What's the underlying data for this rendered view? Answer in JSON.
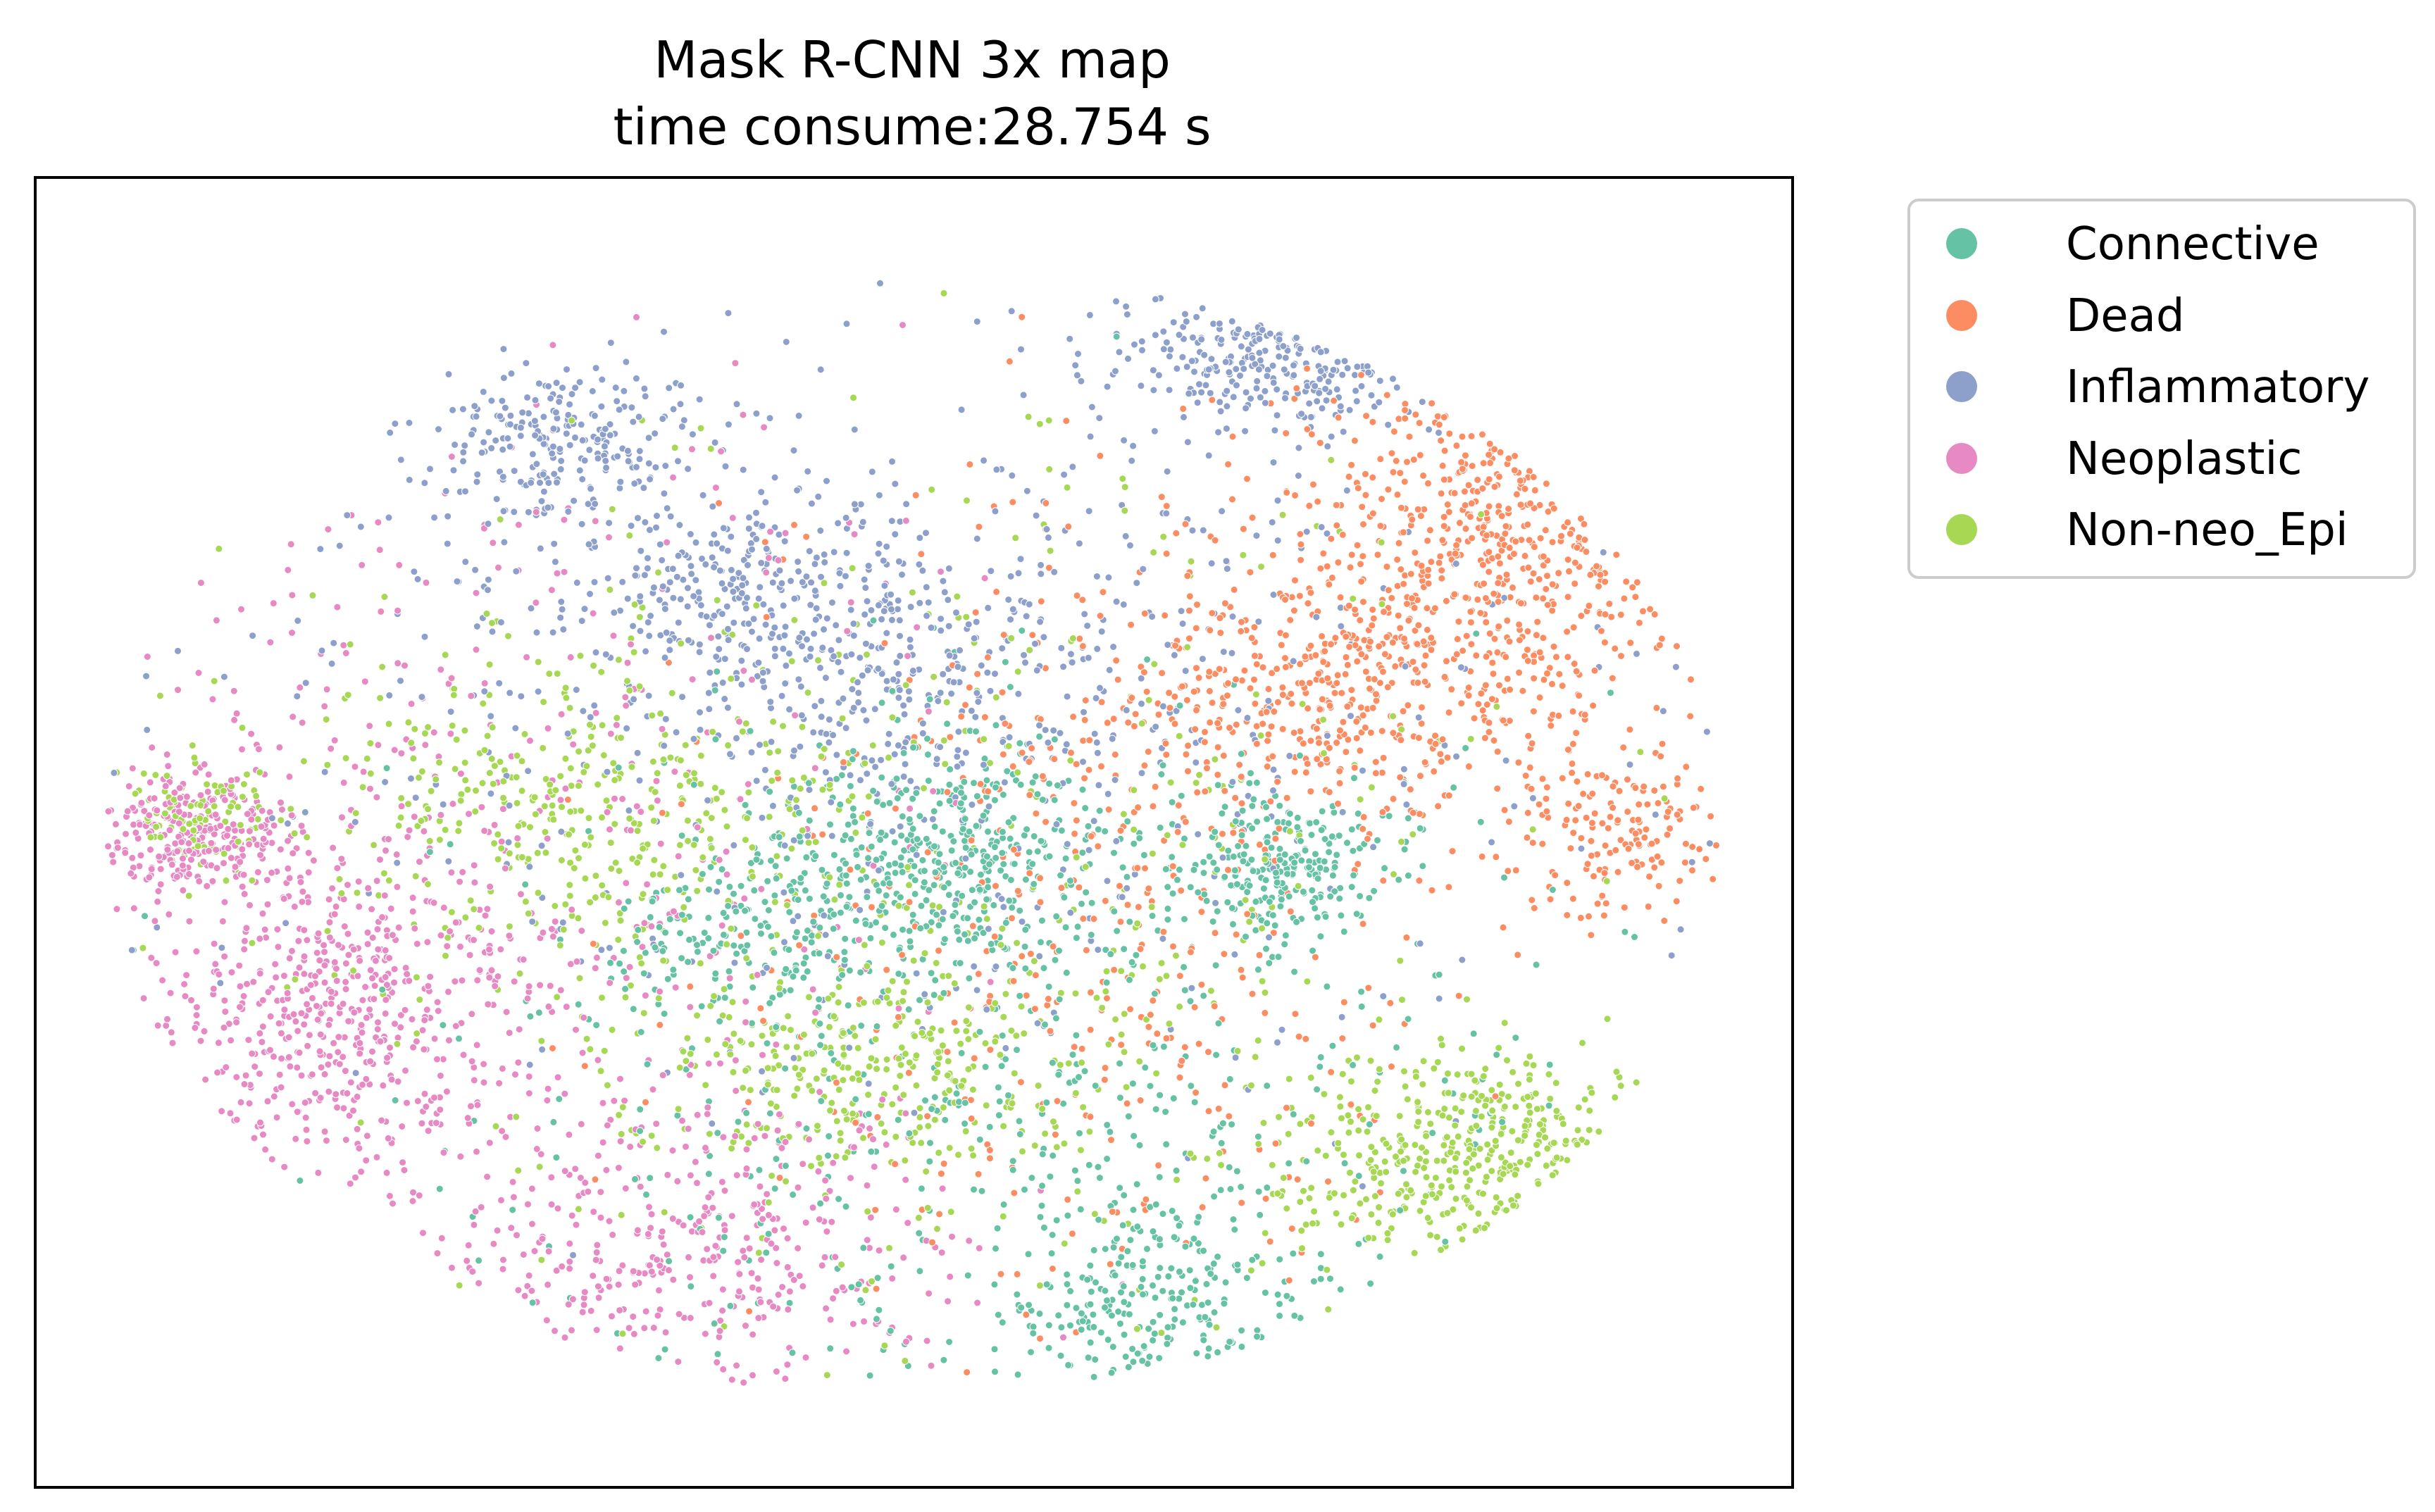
{
  "chart_data": {
    "type": "scatter",
    "title": "Mask R-CNN 3x map",
    "subtitle": "time consume:28.754 s",
    "xlabel": "",
    "ylabel": "",
    "xticks": [],
    "yticks": [],
    "xlim": [
      0,
      100
    ],
    "ylim": [
      0,
      100
    ],
    "grid": false,
    "legend_position": "outside-right-top",
    "series": [
      {
        "name": "Connective",
        "color": "#66c2a5",
        "clusters": [
          {
            "cx": 52,
            "cy": 48,
            "sx": 5,
            "sy": 5,
            "weight": 0.28
          },
          {
            "cx": 71,
            "cy": 47,
            "sx": 3,
            "sy": 3,
            "weight": 0.16
          },
          {
            "cx": 64,
            "cy": 14,
            "sx": 4,
            "sy": 4,
            "weight": 0.14
          },
          {
            "cx": 41,
            "cy": 42,
            "sx": 4,
            "sy": 4,
            "weight": 0.1
          },
          {
            "cx": 55,
            "cy": 30,
            "sx": 16,
            "sy": 14,
            "weight": 0.32
          }
        ]
      },
      {
        "name": "Dead",
        "color": "#fc8d62",
        "clusters": [
          {
            "cx": 83,
            "cy": 72,
            "sx": 6,
            "sy": 8,
            "weight": 0.38
          },
          {
            "cx": 73,
            "cy": 60,
            "sx": 6,
            "sy": 5,
            "weight": 0.22
          },
          {
            "cx": 90,
            "cy": 50,
            "sx": 3,
            "sy": 4,
            "weight": 0.1
          },
          {
            "cx": 60,
            "cy": 45,
            "sx": 10,
            "sy": 15,
            "weight": 0.3
          }
        ]
      },
      {
        "name": "Inflammatory",
        "color": "#8da0cb",
        "clusters": [
          {
            "cx": 30,
            "cy": 80,
            "sx": 4,
            "sy": 3,
            "weight": 0.16
          },
          {
            "cx": 40,
            "cy": 68,
            "sx": 5,
            "sy": 4,
            "weight": 0.14
          },
          {
            "cx": 72,
            "cy": 87,
            "sx": 5,
            "sy": 3,
            "weight": 0.16
          },
          {
            "cx": 48,
            "cy": 63,
            "sx": 6,
            "sy": 6,
            "weight": 0.16
          },
          {
            "cx": 50,
            "cy": 60,
            "sx": 20,
            "sy": 15,
            "weight": 0.38
          }
        ]
      },
      {
        "name": "Neoplastic",
        "color": "#e78ac3",
        "clusters": [
          {
            "cx": 9,
            "cy": 50,
            "sx": 2.5,
            "sy": 2.5,
            "weight": 0.16
          },
          {
            "cx": 17,
            "cy": 37,
            "sx": 5,
            "sy": 7,
            "weight": 0.3
          },
          {
            "cx": 38,
            "cy": 18,
            "sx": 8,
            "sy": 6,
            "weight": 0.24
          },
          {
            "cx": 25,
            "cy": 45,
            "sx": 12,
            "sy": 18,
            "weight": 0.3
          }
        ]
      },
      {
        "name": "Non-neo_Epi",
        "color": "#a6d854",
        "clusters": [
          {
            "cx": 83,
            "cy": 25,
            "sx": 6,
            "sy": 4,
            "weight": 0.26
          },
          {
            "cx": 47,
            "cy": 32,
            "sx": 6,
            "sy": 4,
            "weight": 0.18
          },
          {
            "cx": 30,
            "cy": 52,
            "sx": 7,
            "sy": 6,
            "weight": 0.2
          },
          {
            "cx": 10,
            "cy": 51,
            "sx": 2,
            "sy": 2,
            "weight": 0.06
          },
          {
            "cx": 50,
            "cy": 45,
            "sx": 20,
            "sy": 18,
            "weight": 0.3
          }
        ]
      }
    ]
  }
}
